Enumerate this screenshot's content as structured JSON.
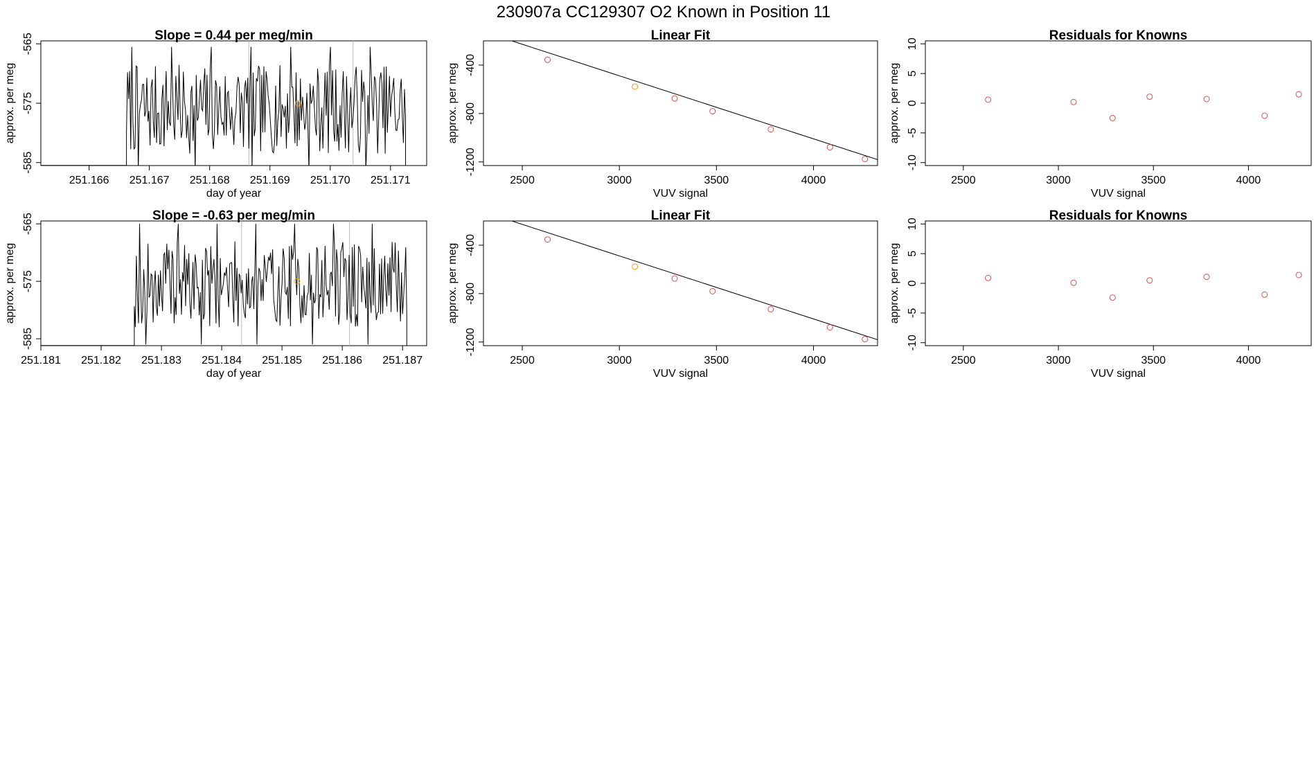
{
  "suptitle": "230907a      CC129307   O2 Known in Position  11",
  "colors": {
    "line": "#000000",
    "marker": "#d9534f",
    "marker_highlight": "#f0a020",
    "vline": "#bbbbbb",
    "frame": "#000000"
  },
  "chart_data": [
    {
      "id": "ts1",
      "type": "line",
      "title": "Slope =  0.44  per meg/min",
      "xlabel": "day of year",
      "ylabel": "approx. per meg",
      "xlim": [
        251.1652,
        251.1716
      ],
      "ylim": [
        -585.5,
        -564.5
      ],
      "xticks": [
        251.166,
        251.167,
        251.168,
        251.169,
        251.17,
        251.171
      ],
      "xtick_labels": [
        "251.166",
        "251.167",
        "251.168",
        "251.169",
        "251.170",
        "251.171"
      ],
      "yticks": [
        -565,
        -575,
        -585
      ],
      "ytick_labels": [
        "-565",
        "-575",
        "-585"
      ],
      "vlines": [
        251.16865,
        251.17038
      ],
      "highlight_point": {
        "x": 251.16947,
        "y": -575.0
      },
      "x_start": 251.16662,
      "x_end": 251.17125,
      "baseline": -585.5,
      "mean": -576.0,
      "amplitude": 7.5,
      "seed": 7
    },
    {
      "id": "fit1",
      "type": "scatter",
      "title": "Linear Fit",
      "xlabel": "VUV signal",
      "ylabel": "approx. per meg",
      "xlim": [
        2300,
        4330
      ],
      "ylim": [
        -1230,
        -200
      ],
      "xticks": [
        2500,
        3000,
        3500,
        4000
      ],
      "xtick_labels": [
        "2500",
        "3000",
        "3500",
        "4000"
      ],
      "yticks": [
        -400,
        -800,
        -1200
      ],
      "ytick_labels": [
        "-400",
        "-800",
        "-1200"
      ],
      "x": [
        2630,
        3080,
        3285,
        3480,
        3780,
        4085,
        4265
      ],
      "y": [
        -356,
        -578,
        -676,
        -781,
        -931,
        -1079,
        -1176
      ],
      "highlight_index": 1,
      "fit_line": {
        "x": [
          2300,
          4330
        ],
        "y": [
          -124,
          -1181
        ]
      }
    },
    {
      "id": "res1",
      "type": "scatter",
      "title": "Residuals for Knowns",
      "xlabel": "VUV signal",
      "ylabel": "approx. per meg",
      "xlim": [
        2300,
        4330
      ],
      "ylim": [
        -10.5,
        10.5
      ],
      "xticks": [
        2500,
        3000,
        3500,
        4000
      ],
      "xtick_labels": [
        "2500",
        "3000",
        "3500",
        "4000"
      ],
      "yticks": [
        10,
        5,
        0,
        -5,
        -10
      ],
      "ytick_labels": [
        "10",
        "5",
        "0",
        "-5",
        "-10"
      ],
      "x": [
        2630,
        3080,
        3285,
        3480,
        3780,
        4085,
        4265
      ],
      "y": [
        0.6,
        0.2,
        -2.5,
        1.1,
        0.7,
        -2.1,
        1.5
      ]
    },
    {
      "id": "ts2",
      "type": "line",
      "title": "Slope =  -0.63  per meg/min",
      "xlabel": "day of year",
      "ylabel": "approx. per meg",
      "xlim": [
        251.181,
        251.1874
      ],
      "ylim": [
        -586.2,
        -564.5
      ],
      "xticks": [
        251.181,
        251.182,
        251.183,
        251.184,
        251.185,
        251.186,
        251.187
      ],
      "xtick_labels": [
        "251.181",
        "251.182",
        "251.183",
        "251.184",
        "251.185",
        "251.186",
        "251.187"
      ],
      "yticks": [
        -565,
        -575,
        -585
      ],
      "ytick_labels": [
        "-565",
        "-575",
        "-585"
      ],
      "vlines": [
        251.18433,
        251.18612
      ],
      "highlight_point": {
        "x": 251.18525,
        "y": -575.0
      },
      "x_start": 251.18255,
      "x_end": 251.18707,
      "baseline": -586.2,
      "mean": -575.5,
      "amplitude": 7.5,
      "seed": 19
    },
    {
      "id": "fit2",
      "type": "scatter",
      "title": "Linear Fit",
      "xlabel": "VUV signal",
      "ylabel": "approx. per meg",
      "xlim": [
        2300,
        4330
      ],
      "ylim": [
        -1230,
        -200
      ],
      "xticks": [
        2500,
        3000,
        3500,
        4000
      ],
      "xtick_labels": [
        "2500",
        "3000",
        "3500",
        "4000"
      ],
      "yticks": [
        -400,
        -800,
        -1200
      ],
      "ytick_labels": [
        "-400",
        "-800",
        "-1200"
      ],
      "x": [
        2630,
        3080,
        3285,
        3480,
        3780,
        4085,
        4265
      ],
      "y": [
        -353,
        -577,
        -675,
        -780,
        -929,
        -1079,
        -1176
      ],
      "highlight_index": 1,
      "fit_line": {
        "x": [
          2300,
          4330
        ],
        "y": [
          -124,
          -1181
        ]
      }
    },
    {
      "id": "res2",
      "type": "scatter",
      "title": "Residuals for Knowns",
      "xlabel": "VUV signal",
      "ylabel": "approx. per meg",
      "xlim": [
        2300,
        4330
      ],
      "ylim": [
        -10.5,
        10.5
      ],
      "xticks": [
        2500,
        3000,
        3500,
        4000
      ],
      "xtick_labels": [
        "2500",
        "3000",
        "3500",
        "4000"
      ],
      "yticks": [
        10,
        5,
        0,
        -5,
        -10
      ],
      "ytick_labels": [
        "10",
        "5",
        "0",
        "-5",
        "-10"
      ],
      "x": [
        2630,
        3080,
        3285,
        3480,
        3780,
        4085,
        4265
      ],
      "y": [
        0.9,
        0.1,
        -2.4,
        0.5,
        1.1,
        -1.9,
        1.4
      ]
    }
  ]
}
